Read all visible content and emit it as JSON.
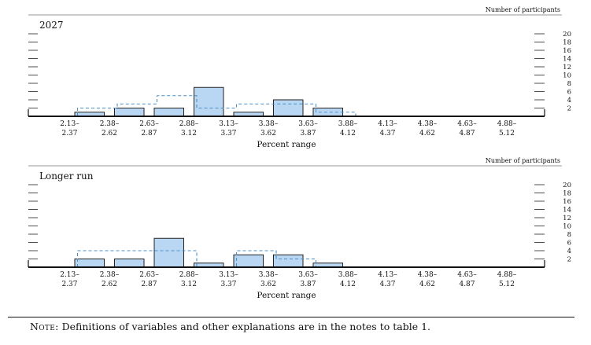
{
  "colors": {
    "bar_fill": "#b9d7f2",
    "bar_stroke": "#222222",
    "dashed": "#4a90c8",
    "axis": "#111111"
  },
  "note": {
    "label": "Note:",
    "text": "Definitions of variables and other explanations are in the notes to table 1."
  },
  "chart_data": [
    {
      "type": "bar",
      "title": "2027",
      "right_axis_label": "Number of participants",
      "xlabel": "Percent range",
      "categories": [
        [
          "2.13–",
          "2.37"
        ],
        [
          "2.38–",
          "2.62"
        ],
        [
          "2.63–",
          "2.87"
        ],
        [
          "2.88–",
          "3.12"
        ],
        [
          "3.13–",
          "3.37"
        ],
        [
          "3.38–",
          "3.62"
        ],
        [
          "3.63–",
          "3.87"
        ],
        [
          "3.88–",
          "4.12"
        ],
        [
          "4.13–",
          "4.37"
        ],
        [
          "4.38–",
          "4.62"
        ],
        [
          "4.63–",
          "4.87"
        ],
        [
          "4.88–",
          "5.12"
        ]
      ],
      "yticks": [
        2,
        4,
        6,
        8,
        10,
        12,
        14,
        16,
        18,
        20
      ],
      "ylim": [
        0,
        20
      ],
      "series": [
        {
          "values": [
            0,
            1,
            2,
            2,
            7,
            1,
            4,
            2,
            0,
            0,
            0,
            0
          ]
        },
        {
          "style": "dashed",
          "values": [
            0,
            2,
            3,
            5,
            2,
            3,
            3,
            1,
            0,
            0,
            0,
            0
          ]
        }
      ]
    },
    {
      "type": "bar",
      "title": "Longer run",
      "right_axis_label": "Number of participants",
      "xlabel": "Percent range",
      "categories": [
        [
          "2.13–",
          "2.37"
        ],
        [
          "2.38–",
          "2.62"
        ],
        [
          "2.63–",
          "2.87"
        ],
        [
          "2.88–",
          "3.12"
        ],
        [
          "3.13–",
          "3.37"
        ],
        [
          "3.38–",
          "3.62"
        ],
        [
          "3.63–",
          "3.87"
        ],
        [
          "3.88–",
          "4.12"
        ],
        [
          "4.13–",
          "4.37"
        ],
        [
          "4.38–",
          "4.62"
        ],
        [
          "4.63–",
          "4.87"
        ],
        [
          "4.88–",
          "5.12"
        ]
      ],
      "yticks": [
        2,
        4,
        6,
        8,
        10,
        12,
        14,
        16,
        18,
        20
      ],
      "ylim": [
        0,
        20
      ],
      "series": [
        {
          "values": [
            0,
            2,
            2,
            7,
            1,
            3,
            3,
            1,
            0,
            0,
            0,
            0
          ]
        },
        {
          "style": "dashed",
          "values": [
            0,
            4,
            4,
            4,
            0,
            4,
            2,
            0,
            0,
            0,
            0,
            0
          ]
        }
      ]
    }
  ]
}
